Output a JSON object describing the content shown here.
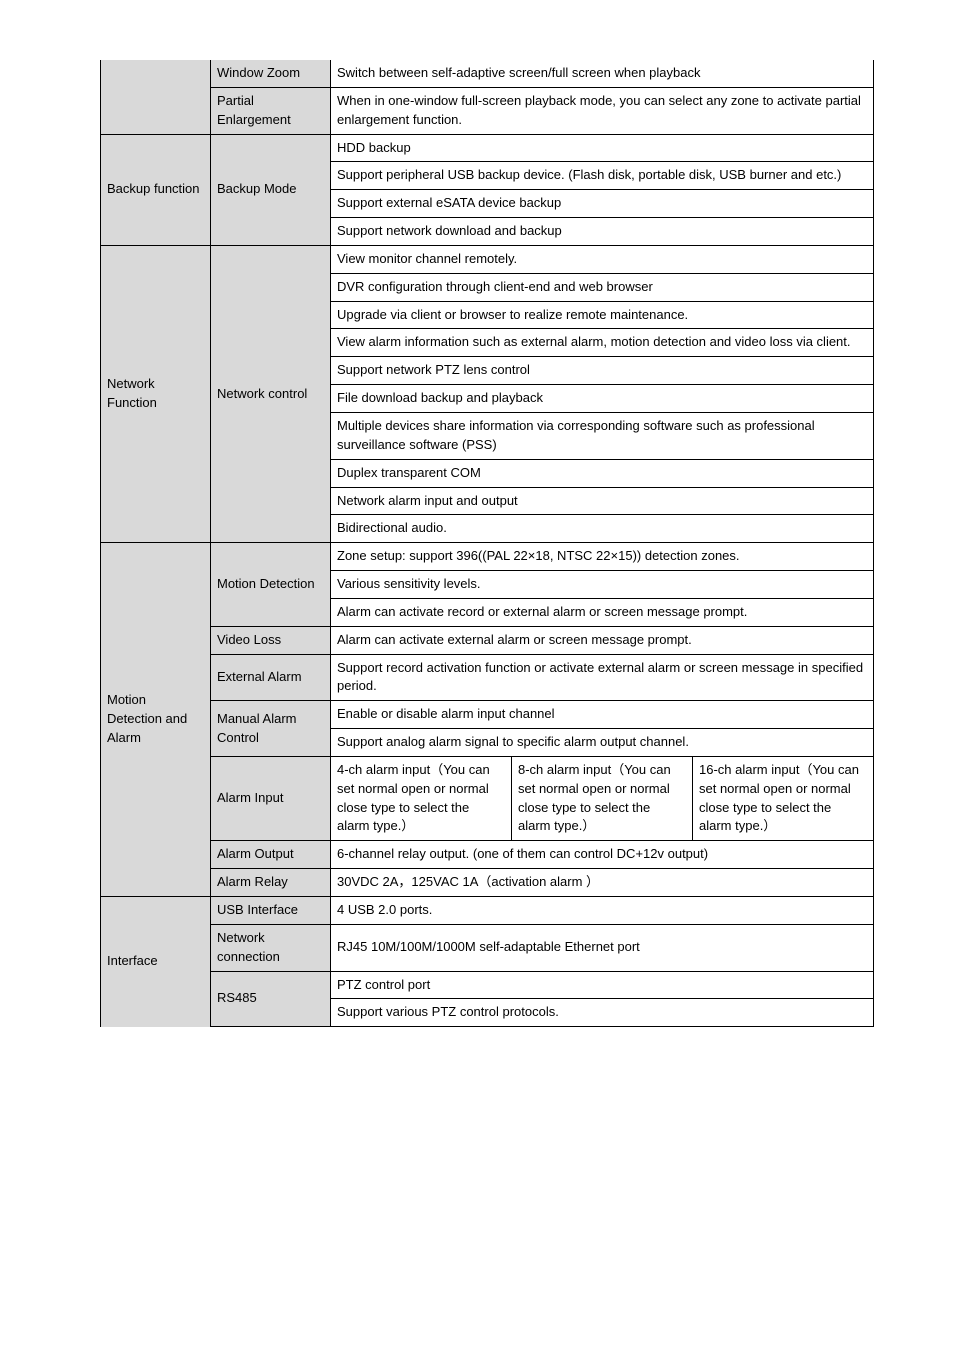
{
  "colors": {
    "cell_bg": "#d9d9d9",
    "border": "#000000",
    "text": "#000000",
    "page_bg": "#ffffff"
  },
  "fontsize_pt": 10,
  "rows": {
    "window_zoom_label": "Window Zoom",
    "window_zoom_val": "Switch between self-adaptive screen/full screen when playback",
    "partial_label": "Partial Enlargement",
    "partial_val": "When in one-window full-screen playback mode, you can select any zone to activate partial enlargement function.",
    "backup_label": "Backup function",
    "backup_mode_label": "Backup Mode",
    "backup_r1": "HDD backup",
    "backup_r2": "Support peripheral USB backup device. (Flash disk, portable disk, USB burner and etc.)",
    "backup_r3": "Support external eSATA device backup",
    "backup_r4": "Support network download and backup",
    "net_label": "Network Function",
    "net_ctrl_label": "Network control",
    "net_r1": "View monitor channel remotely.",
    "net_r2": "DVR configuration through client-end and web browser",
    "net_r3": "Upgrade via client or browser to realize remote maintenance.",
    "net_r4": "View alarm information such as external alarm, motion detection and video loss via client.",
    "net_r5": "Support network PTZ lens control",
    "net_r6": "File download backup and playback",
    "net_r7": "Multiple devices share information via corresponding software such as professional surveillance software (PSS)",
    "net_r8": "Duplex transparent COM",
    "net_r9": "Network alarm input and output",
    "net_r10": "Bidirectional audio.",
    "motion_label": "Motion Detection and Alarm",
    "motion_det_label": "Motion Detection",
    "motion_r1": "Zone setup: support 396((PAL 22×18, NTSC 22×15)) detection zones.",
    "motion_r2": "Various sensitivity levels.",
    "motion_r3": "Alarm can activate record or external alarm or screen message prompt.",
    "video_loss_label": "Video Loss",
    "video_loss_val": "Alarm can activate external alarm or screen message prompt.",
    "ext_alarm_label": "External Alarm",
    "ext_alarm_val": "Support record activation function or activate external alarm or screen message in specified period.",
    "manual_alarm_label": "Manual Alarm Control",
    "manual_r1": "Enable or disable alarm input channel",
    "manual_r2": "Support analog alarm signal to specific alarm output channel.",
    "alarm_input_label": "Alarm Input",
    "ai_c1": "4-ch alarm input（You can set normal open or normal close type to select the alarm type.）",
    "ai_c2": "8-ch alarm input（You can set normal open or normal close type to select the alarm type.）",
    "ai_c3": "16-ch alarm input（You can set normal open or normal close type to select the alarm type.）",
    "alarm_output_label": "Alarm Output",
    "alarm_output_val": "6-channel relay output.    (one of them can control DC+12v output)",
    "alarm_relay_label": "Alarm Relay",
    "alarm_relay_val": "30VDC    2A，125VAC    1A（activation alarm ）",
    "iface_label": "Interface",
    "usb_label": "USB Interface",
    "usb_val": "4 USB 2.0 ports.",
    "net_conn_label": "Network connection",
    "net_conn_val": "RJ45 10M/100M/1000M self-adaptable Ethernet port",
    "rs485_label": "RS485",
    "rs485_r1": "PTZ control port",
    "rs485_r2": "Support various PTZ control protocols."
  }
}
